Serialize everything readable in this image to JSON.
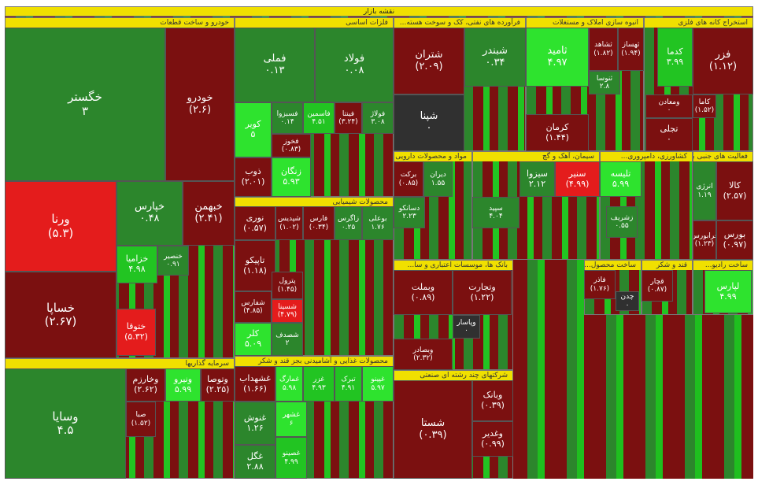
{
  "title": "نقشه بازار",
  "sectors": [
    {
      "name": "خودرو و ساخت قطعات",
      "tiles": [
        {
          "name": "خگستر",
          "change": "۳",
          "color": "#2c862c"
        },
        {
          "name": "خودرو",
          "change": "(۲.۶)",
          "color": "#7b1010"
        },
        {
          "name": "ورنا",
          "change": "(۵.۳)",
          "color": "#e41c1c"
        },
        {
          "name": "خساپا",
          "change": "(۲.۶۷)",
          "color": "#7b1010"
        },
        {
          "name": "خپارس",
          "change": "۰.۴۸",
          "color": "#2c862c"
        },
        {
          "name": "خبهمن",
          "change": "(۲.۴۱)",
          "color": "#7b1010"
        },
        {
          "name": "خزامیا",
          "change": "۴.۹۸",
          "color": "#22c422"
        },
        {
          "name": "خنصیر",
          "change": "۰.۹۱",
          "color": "#2c862c"
        },
        {
          "name": "ختوقا",
          "change": "(۵.۳۲)",
          "color": "#e41c1c"
        }
      ]
    },
    {
      "name": "فلزات اساسی",
      "tiles": [
        {
          "name": "فملی",
          "change": "۰.۱۳",
          "color": "#2c862c"
        },
        {
          "name": "فولاد",
          "change": "۰.۰۸",
          "color": "#2c862c"
        },
        {
          "name": "کویر",
          "change": "۵",
          "color": "#2ee32e"
        },
        {
          "name": "فسبزوا",
          "change": "۰.۱۴",
          "color": "#2c862c"
        },
        {
          "name": "فاسمین",
          "change": "۴.۵۱",
          "color": "#22c422"
        },
        {
          "name": "فینتا",
          "change": "(۳.۲۴)",
          "color": "#7b1010"
        },
        {
          "name": "فولاژ",
          "change": "۳.۰۸",
          "color": "#2c862c"
        },
        {
          "name": "فخوز",
          "change": "(۰.۸۳)",
          "color": "#7b1010"
        },
        {
          "name": "ذوب",
          "change": "(۲.۰۱)",
          "color": "#7b1010"
        },
        {
          "name": "زنگان",
          "change": "۵.۹۳",
          "color": "#2ee32e"
        }
      ]
    },
    {
      "name": "فرآورده های نفتی، کک و سوخت هسته...",
      "tiles": [
        {
          "name": "شتران",
          "change": "(۲.۰۹)",
          "color": "#7b1010"
        },
        {
          "name": "شبندر",
          "change": "۰.۳۴",
          "color": "#2c862c"
        },
        {
          "name": "شپنا",
          "change": "۰",
          "color": "#303030"
        }
      ]
    },
    {
      "name": "انبوه سازی املاک و مستغلات",
      "tiles": [
        {
          "name": "ثامید",
          "change": "۴.۹۷",
          "color": "#2ee32e"
        },
        {
          "name": "ثشاهد",
          "change": "(۱.۸۲)",
          "color": "#7b1010"
        },
        {
          "name": "ثهساز",
          "change": "(۱.۹۴)",
          "color": "#7b1010"
        },
        {
          "name": "ثنوسا",
          "change": "۲.۸",
          "color": "#2c862c"
        },
        {
          "name": "کرمان",
          "change": "(۱.۴۴)",
          "color": "#7b1010"
        }
      ]
    },
    {
      "name": "استخراج کانه های فلزی",
      "tiles": [
        {
          "name": "کدما",
          "change": "۳.۹۹",
          "color": "#22c422"
        },
        {
          "name": "فزر",
          "change": "(۱.۱۲)",
          "color": "#7b1010"
        },
        {
          "name": "ومعادن",
          "change": "۰",
          "color": "#7b1010"
        },
        {
          "name": "کاما",
          "change": "(۱.۵۲)",
          "color": "#7b1010"
        },
        {
          "name": "تجلی",
          "change": "۰",
          "color": "#7b1010"
        }
      ]
    },
    {
      "name": "محصولات شیمیایی",
      "tiles": [
        {
          "name": "نوری",
          "change": "(۰.۵۷)",
          "color": "#7b1010"
        },
        {
          "name": "شپدیس",
          "change": "(۱.۰۲)",
          "color": "#7b1010"
        },
        {
          "name": "فارس",
          "change": "(۰.۳۴)",
          "color": "#7b1010"
        },
        {
          "name": "زاگرس",
          "change": "۰.۲۵",
          "color": "#2c862c"
        },
        {
          "name": "بوعلی",
          "change": "۱.۷۶",
          "color": "#2c862c"
        },
        {
          "name": "تاپیکو",
          "change": "(۱.۱۸)",
          "color": "#7b1010"
        },
        {
          "name": "پترول",
          "change": "(۱.۴۵)",
          "color": "#7b1010"
        },
        {
          "name": "شسینا",
          "change": "(۴.۷۹)",
          "color": "#e41c1c"
        },
        {
          "name": "شفارس",
          "change": "(۴.۸۵)",
          "color": "#7b1010"
        },
        {
          "name": "کلر",
          "change": "۵.۰۹",
          "color": "#2ee32e"
        },
        {
          "name": "شصدف",
          "change": "۲",
          "color": "#2c862c"
        }
      ]
    },
    {
      "name": "مواد و محصولات دارویی",
      "tiles": [
        {
          "name": "برکت",
          "change": "(۰.۸۵)",
          "color": "#7b1010"
        },
        {
          "name": "دیران",
          "change": "۱.۵۵",
          "color": "#2c862c"
        },
        {
          "name": "دسانکو",
          "change": "۲.۲۳",
          "color": "#2c862c"
        }
      ]
    },
    {
      "name": "سیمان، آهک و گچ",
      "tiles": [
        {
          "name": "سیزوا",
          "change": "۲.۱۲",
          "color": "#2c862c"
        },
        {
          "name": "سنیر",
          "change": "(۴.۹۹)",
          "color": "#e41c1c"
        },
        {
          "name": "سپید",
          "change": "۴.۰۴",
          "color": "#2c862c"
        }
      ]
    },
    {
      "name": "کشاورزی، دامپروری...",
      "tiles": [
        {
          "name": "تلیسه",
          "change": "۵.۹۹",
          "color": "#2ee32e"
        },
        {
          "name": "زشریف",
          "change": "۰.۵۵",
          "color": "#2c862c"
        }
      ]
    },
    {
      "name": "فعالیت های جنبی به...",
      "tiles": [
        {
          "name": "انرژی",
          "change": "۱.۱۹",
          "color": "#2c862c"
        },
        {
          "name": "کالا",
          "change": "(۲.۵۷)",
          "color": "#7b1010"
        },
        {
          "name": "فرابورس",
          "change": "(۱.۲۳)",
          "color": "#7b1010"
        },
        {
          "name": "بورس",
          "change": "(۰.۹۷)",
          "color": "#7b1010"
        }
      ]
    },
    {
      "name": "بانک ها، موسسات اعتباری و سا...",
      "tiles": [
        {
          "name": "وبملت",
          "change": "(۰.۸۹)",
          "color": "#7b1010"
        },
        {
          "name": "وتجارت",
          "change": "(۱.۲۲)",
          "color": "#7b1010"
        },
        {
          "name": "وپاسار",
          "change": "۰",
          "color": "#303030"
        },
        {
          "name": "وبصادر",
          "change": "(۲.۳۲)",
          "color": "#7b1010"
        }
      ]
    },
    {
      "name": "ساخت محصول...",
      "tiles": [
        {
          "name": "فاذر",
          "change": "(۱.۷۶)",
          "color": "#7b1010"
        },
        {
          "name": "چدن",
          "change": "۰",
          "color": "#303030"
        }
      ]
    },
    {
      "name": "قند و شکر",
      "tiles": [
        {
          "name": "قچار",
          "change": "(۰.۸۷)",
          "color": "#7b1010"
        }
      ]
    },
    {
      "name": "ساخت رادیو...",
      "tiles": [
        {
          "name": "لپارس",
          "change": "۴.۹۹",
          "color": "#2ee32e"
        }
      ]
    },
    {
      "name": "سرمایه گذاریها",
      "tiles": [
        {
          "name": "وسایا",
          "change": "۴.۵",
          "color": "#2c862c"
        },
        {
          "name": "وخارزم",
          "change": "(۲.۶۲)",
          "color": "#7b1010"
        },
        {
          "name": "ونیرو",
          "change": "۵.۹۹",
          "color": "#2ee32e"
        },
        {
          "name": "وتوصا",
          "change": "(۲.۲۵)",
          "color": "#7b1010"
        },
        {
          "name": "صبا",
          "change": "(۱.۵۲)",
          "color": "#7b1010"
        }
      ]
    },
    {
      "name": "محصولات غذایی و آشامیدنی بجز قند و شکر",
      "tiles": [
        {
          "name": "غشهداب",
          "change": "(۱.۶۶)",
          "color": "#7b1010"
        },
        {
          "name": "غمارگ",
          "change": "۵.۹۸",
          "color": "#2ee32e"
        },
        {
          "name": "غزر",
          "change": "۴.۹۳",
          "color": "#22c422"
        },
        {
          "name": "تبرک",
          "change": "۴.۹۱",
          "color": "#22c422"
        },
        {
          "name": "غپینو",
          "change": "۵.۹۷",
          "color": "#2ee32e"
        },
        {
          "name": "غنوش",
          "change": "۱.۲۶",
          "color": "#2c862c"
        },
        {
          "name": "غشهر",
          "change": "۶",
          "color": "#2ee32e"
        },
        {
          "name": "غگل",
          "change": "۲.۸۸",
          "color": "#2c862c"
        },
        {
          "name": "غصینو",
          "change": "۴.۹۹",
          "color": "#22c422"
        }
      ]
    },
    {
      "name": "شرکتهای چند رشته ای صنعتی",
      "tiles": [
        {
          "name": "شستا",
          "change": "(۰.۳۹)",
          "color": "#7b1010"
        },
        {
          "name": "وبانک",
          "change": "(۰.۳۹)",
          "color": "#7b1010"
        },
        {
          "name": "وغدیر",
          "change": "(۰.۹۹)",
          "color": "#7b1010"
        }
      ]
    }
  ]
}
